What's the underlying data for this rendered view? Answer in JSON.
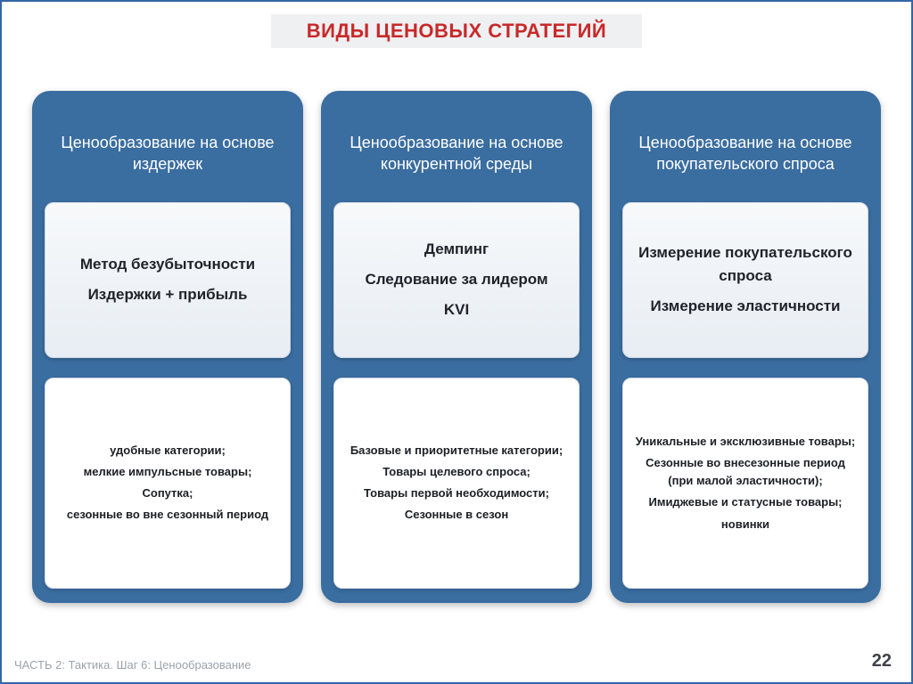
{
  "colors": {
    "page_border": "#3366a3",
    "title_bg": "#eef0f2",
    "title_text": "#c9292a",
    "col_bg": "#3a6da0",
    "col_text": "#ffffff",
    "card_bg_top": "#f7f9fb",
    "card_bg_bottom": "#e7edf3",
    "card_border": "#cfd8e1",
    "bottom_card_bg": "#ffffff",
    "breadcrumb": "#9aa2ab",
    "pagenum": "#3d4248"
  },
  "title": "ВИДЫ ЦЕНОВЫХ СТРАТЕГИЙ",
  "columns": [
    {
      "header": "Ценообразование на основе издержек",
      "middle": [
        "Метод безубыточности",
        "Издержки + прибыль"
      ],
      "bottom": [
        "удобные категории;",
        "мелкие импульсные товары;",
        "Сопутка;",
        "сезонные во вне сезонный период"
      ]
    },
    {
      "header": "Ценообразование на основе конкурентной среды",
      "middle": [
        "Демпинг",
        "Следование за лидером",
        "KVI"
      ],
      "bottom": [
        "Базовые и приоритетные категории;",
        "Товары целевого спроса;",
        "Товары первой необходимости;",
        "Сезонные в сезон"
      ]
    },
    {
      "header": "Ценообразование на основе покупательского спроса",
      "middle": [
        "Измерение покупательского спроса",
        "Измерение эластичности"
      ],
      "bottom": [
        "Уникальные и эксклюзивные товары;",
        "Сезонные во внесезонные период (при малой эластичности);",
        "Имиджевые и статусные товары;",
        "новинки"
      ]
    }
  ],
  "breadcrumb": "ЧАСТЬ 2: Тактика. Шаг 6: Ценообразование",
  "page_number": "22"
}
